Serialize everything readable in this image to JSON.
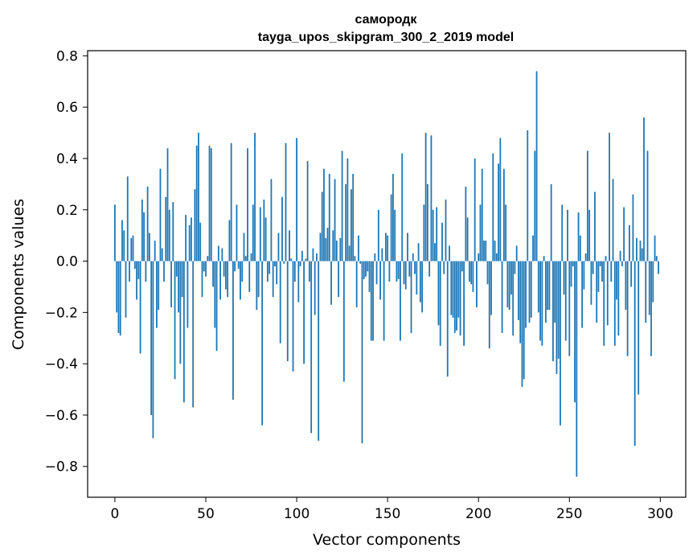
{
  "chart_data": {
    "type": "bar",
    "title": "самородк",
    "subtitle": "tayga_upos_skipgram_300_2_2019 model",
    "xlabel": "Vector components",
    "ylabel": "Components values",
    "xlim": [
      -15,
      314
    ],
    "ylim": [
      -0.92,
      0.82
    ],
    "xticks": [
      0,
      50,
      100,
      150,
      200,
      250,
      300
    ],
    "xtick_labels": [
      "0",
      "50",
      "100",
      "150",
      "200",
      "250",
      "300"
    ],
    "yticks": [
      -0.8,
      -0.6,
      -0.4,
      -0.2,
      0.0,
      0.2,
      0.4,
      0.6,
      0.8
    ],
    "ytick_labels": [
      "−0.8",
      "−0.6",
      "−0.4",
      "−0.2",
      "0.0",
      "0.2",
      "0.4",
      "0.6",
      "0.8"
    ],
    "grid": false,
    "bar_color": "#1f77b4",
    "x": [
      0,
      1,
      2,
      3,
      4,
      5,
      6,
      7,
      8,
      9,
      10,
      11,
      12,
      13,
      14,
      15,
      16,
      17,
      18,
      19,
      20,
      21,
      22,
      23,
      24,
      25,
      26,
      27,
      28,
      29,
      30,
      31,
      32,
      33,
      34,
      35,
      36,
      37,
      38,
      39,
      40,
      41,
      42,
      43,
      44,
      45,
      46,
      47,
      48,
      49,
      50,
      51,
      52,
      53,
      54,
      55,
      56,
      57,
      58,
      59,
      60,
      61,
      62,
      63,
      64,
      65,
      66,
      67,
      68,
      69,
      70,
      71,
      72,
      73,
      74,
      75,
      76,
      77,
      78,
      79,
      80,
      81,
      82,
      83,
      84,
      85,
      86,
      87,
      88,
      89,
      90,
      91,
      92,
      93,
      94,
      95,
      96,
      97,
      98,
      99,
      100,
      101,
      102,
      103,
      104,
      105,
      106,
      107,
      108,
      109,
      110,
      111,
      112,
      113,
      114,
      115,
      116,
      117,
      118,
      119,
      120,
      121,
      122,
      123,
      124,
      125,
      126,
      127,
      128,
      129,
      130,
      131,
      132,
      133,
      134,
      135,
      136,
      137,
      138,
      139,
      140,
      141,
      142,
      143,
      144,
      145,
      146,
      147,
      148,
      149,
      150,
      151,
      152,
      153,
      154,
      155,
      156,
      157,
      158,
      159,
      160,
      161,
      162,
      163,
      164,
      165,
      166,
      167,
      168,
      169,
      170,
      171,
      172,
      173,
      174,
      175,
      176,
      177,
      178,
      179,
      180,
      181,
      182,
      183,
      184,
      185,
      186,
      187,
      188,
      189,
      190,
      191,
      192,
      193,
      194,
      195,
      196,
      197,
      198,
      199,
      200,
      201,
      202,
      203,
      204,
      205,
      206,
      207,
      208,
      209,
      210,
      211,
      212,
      213,
      214,
      215,
      216,
      217,
      218,
      219,
      220,
      221,
      222,
      223,
      224,
      225,
      226,
      227,
      228,
      229,
      230,
      231,
      232,
      233,
      234,
      235,
      236,
      237,
      238,
      239,
      240,
      241,
      242,
      243,
      244,
      245,
      246,
      247,
      248,
      249,
      250,
      251,
      252,
      253,
      254,
      255,
      256,
      257,
      258,
      259,
      260,
      261,
      262,
      263,
      264,
      265,
      266,
      267,
      268,
      269,
      270,
      271,
      272,
      273,
      274,
      275,
      276,
      277,
      278,
      279,
      280,
      281,
      282,
      283,
      284,
      285,
      286,
      287,
      288,
      289,
      290,
      291,
      292,
      293,
      294,
      295,
      296,
      297,
      298,
      299
    ],
    "values": [
      0.22,
      -0.2,
      -0.28,
      -0.29,
      0.16,
      0.12,
      -0.22,
      0.33,
      -0.08,
      0.09,
      0.1,
      -0.03,
      -0.15,
      -0.07,
      -0.36,
      0.24,
      0.19,
      -0.08,
      0.29,
      0.11,
      -0.6,
      -0.69,
      0.08,
      -0.26,
      -0.19,
      0.36,
      0.05,
      -0.08,
      0.25,
      0.44,
      0.2,
      -0.18,
      0.23,
      -0.46,
      -0.06,
      -0.2,
      -0.4,
      -0.14,
      -0.55,
      0.18,
      -0.26,
      0.14,
      0.17,
      -0.57,
      0.28,
      0.45,
      0.5,
      0.15,
      -0.14,
      -0.04,
      -0.06,
      0.02,
      0.45,
      0.44,
      -0.1,
      -0.26,
      -0.35,
      0.06,
      -0.15,
      0.05,
      -0.06,
      -0.11,
      -0.14,
      0.16,
      0.46,
      -0.54,
      -0.04,
      0.22,
      -0.03,
      -0.15,
      -0.08,
      0.11,
      0.02,
      0.44,
      -0.12,
      0.03,
      0.22,
      0.5,
      -0.19,
      -0.14,
      0.21,
      -0.64,
      0.24,
      0.17,
      -0.08,
      -0.05,
      0.32,
      -0.14,
      -0.02,
      -0.09,
      0.11,
      -0.32,
      0.25,
      -0.01,
      0.46,
      -0.39,
      0.12,
      0.01,
      -0.43,
      -0.08,
      0.48,
      -0.16,
      -0.02,
      0.04,
      -0.4,
      0.01,
      0.39,
      -0.08,
      -0.67,
      0.05,
      -0.21,
      0.03,
      -0.7,
      0.11,
      0.27,
      0.36,
      0.09,
      0.13,
      0.34,
      -0.17,
      0.12,
      0.32,
      0.08,
      -0.14,
      0.09,
      0.43,
      -0.47,
      0.3,
      0.4,
      0.06,
      0.28,
      0.34,
      0.02,
      -0.18,
      0.1,
      -0.01,
      -0.71,
      -0.07,
      -0.06,
      -0.04,
      -0.12,
      -0.31,
      -0.31,
      0.03,
      -0.09,
      0.2,
      -0.15,
      0.05,
      -0.31,
      0.11,
      0.1,
      -0.08,
      0.26,
      0.34,
      0.2,
      -0.08,
      -0.07,
      -0.31,
      0.42,
      -0.09,
      -0.11,
      0.11,
      -0.06,
      -0.28,
      0.03,
      -0.05,
      -0.13,
      0.07,
      -0.16,
      -0.2,
      0.22,
      0.5,
      0.3,
      -0.06,
      0.49,
      0.2,
      0.07,
      0.21,
      -0.25,
      -0.33,
      0.15,
      -0.05,
      0.24,
      -0.45,
      0.06,
      -0.21,
      -0.22,
      -0.28,
      -0.27,
      -0.22,
      -0.29,
      -0.04,
      -0.33,
      0.29,
      0.17,
      -0.08,
      -0.09,
      -0.12,
      0.4,
      -0.18,
      0.03,
      0.22,
      0.36,
      0.08,
      0.08,
      -0.09,
      -0.34,
      -0.21,
      0.42,
      0.08,
      0.03,
      0.38,
      0.48,
      -0.28,
      0.36,
      0.22,
      -0.18,
      -0.19,
      -0.13,
      -0.29,
      -0.05,
      0.06,
      -0.23,
      -0.32,
      -0.49,
      -0.46,
      -0.26,
      0.51,
      -0.24,
      -0.22,
      0.1,
      0.43,
      0.74,
      -0.2,
      -0.31,
      -0.33,
      0.02,
      -0.24,
      -0.19,
      -0.19,
      0.3,
      -0.39,
      -0.24,
      -0.44,
      -0.38,
      -0.64,
      0.22,
      -0.13,
      -0.31,
      0.2,
      -0.37,
      -0.1,
      -0.02,
      -0.55,
      -0.84,
      0.19,
      0.1,
      -0.26,
      -0.11,
      0.03,
      0.43,
      0.2,
      -0.17,
      -0.05,
      0.27,
      -0.24,
      -0.12,
      -0.02,
      -0.08,
      -0.33,
      0.02,
      -0.25,
      0.5,
      -0.08,
      0.32,
      -0.33,
      -0.15,
      -0.29,
      0.04,
      -0.02,
      0.21,
      -0.19,
      -0.37,
      0.14,
      -0.1,
      0.26,
      -0.72,
      0.09,
      -0.52,
      0.08,
      0.05,
      0.56,
      -0.24,
      0.43,
      -0.21,
      -0.37,
      -0.16,
      0.1,
      0.02,
      -0.05
    ]
  }
}
